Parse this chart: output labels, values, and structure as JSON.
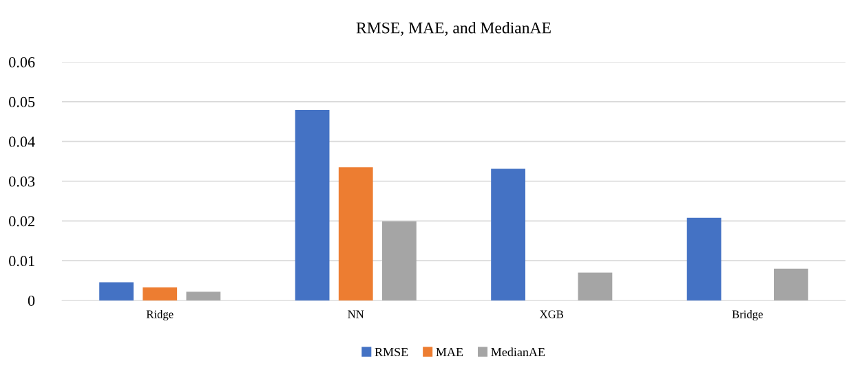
{
  "chart_data": {
    "type": "bar",
    "title": "RMSE, MAE, and MedianAE",
    "categories": [
      "Ridge",
      "NN",
      "XGB",
      "Bridge"
    ],
    "series": [
      {
        "name": "RMSE",
        "color": "#4472c4",
        "values": [
          0.0046,
          0.0479,
          0.0331,
          0.0208
        ]
      },
      {
        "name": "MAE",
        "color": "#ed7d31",
        "values": [
          0.0033,
          0.0335,
          null,
          null
        ]
      },
      {
        "name": "MedianAE",
        "color": "#a5a5a5",
        "values": [
          0.0022,
          0.0199,
          0.007,
          0.008
        ]
      }
    ],
    "ylim": [
      0,
      0.06
    ],
    "yticks": [
      0,
      0.01,
      0.02,
      0.03,
      0.04,
      0.05,
      0.06
    ],
    "grid": "y",
    "legend": "bottom"
  }
}
